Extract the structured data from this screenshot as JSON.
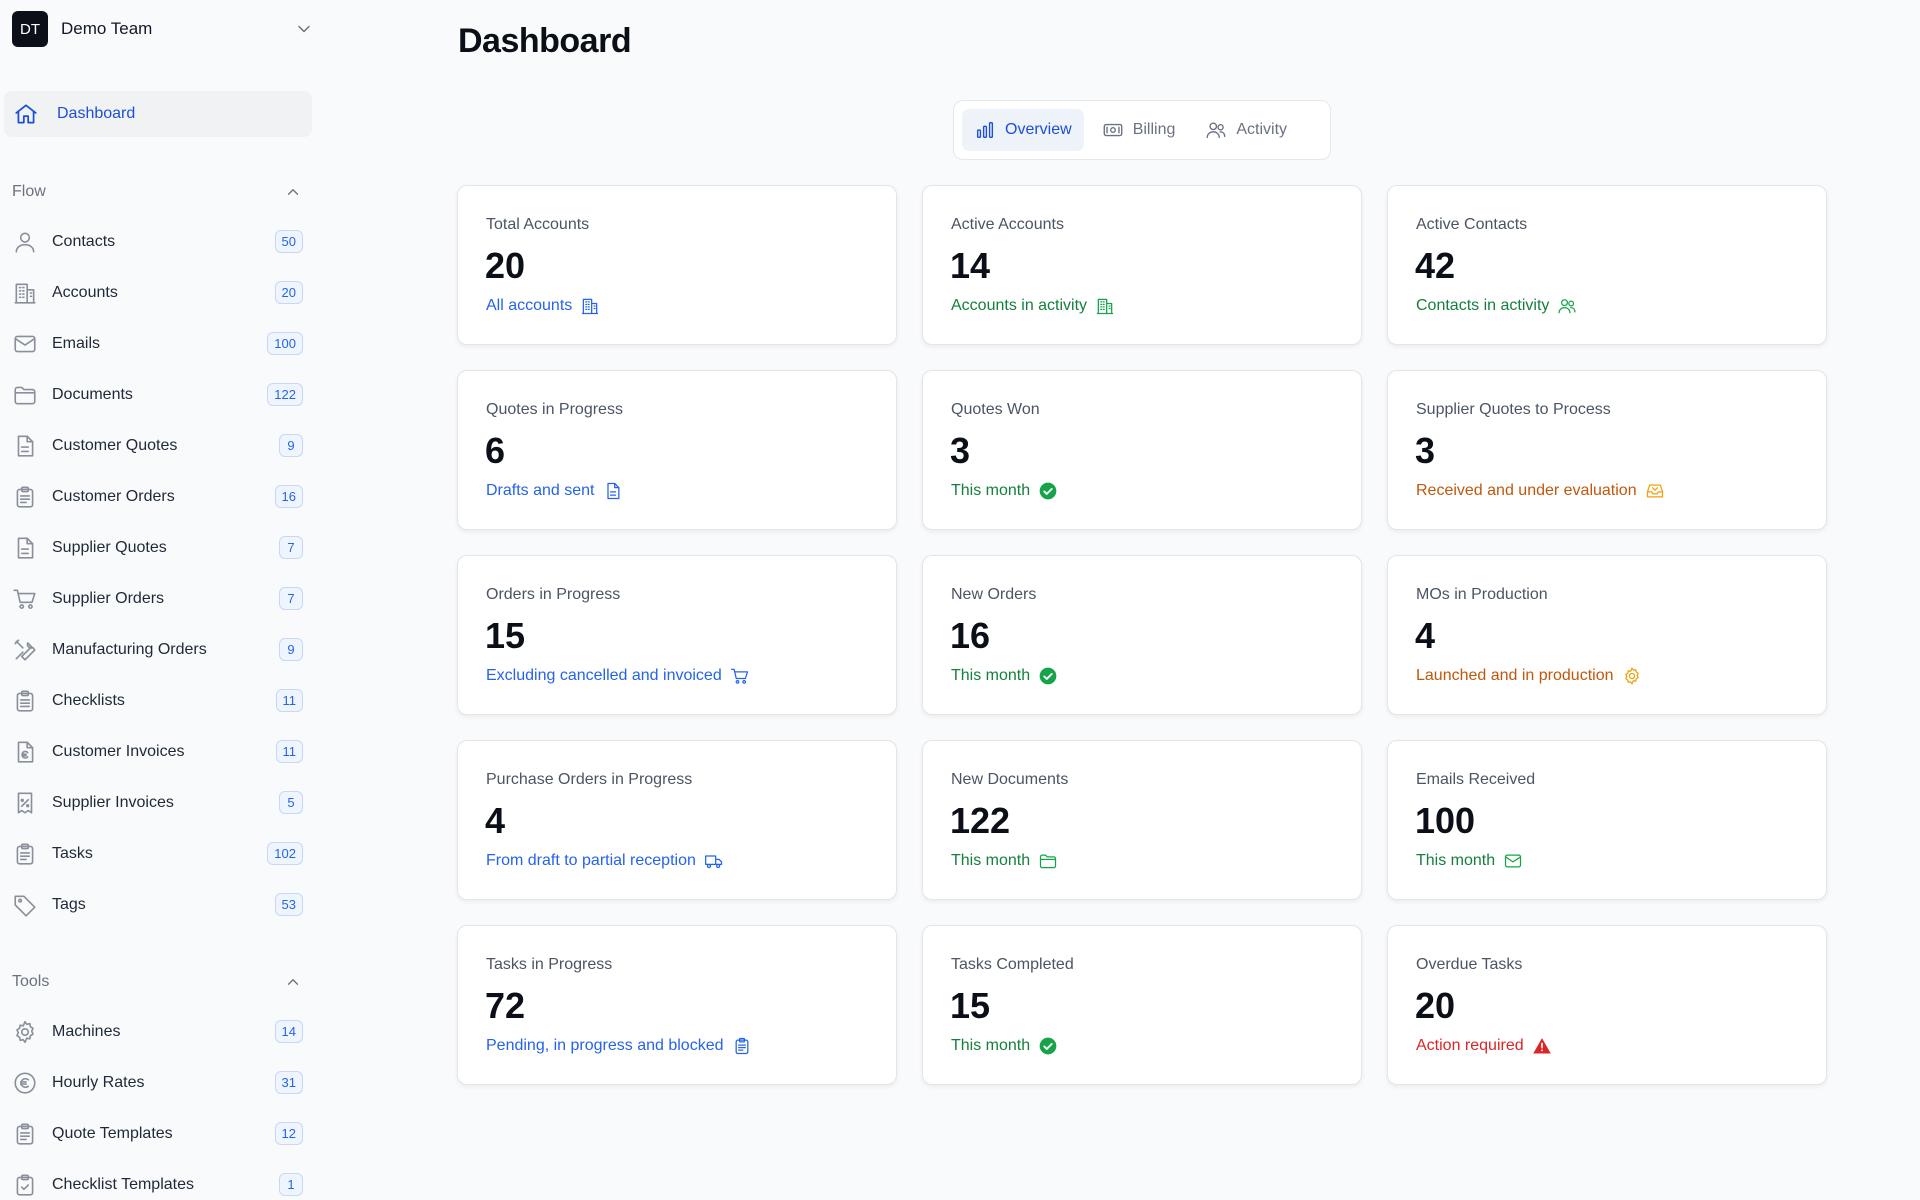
{
  "team": {
    "initials": "DT",
    "name": "Demo Team"
  },
  "nav": {
    "dashboard_label": "Dashboard"
  },
  "sections": {
    "flow": "Flow",
    "tools": "Tools"
  },
  "flow_items": [
    {
      "label": "Contacts",
      "count": "50",
      "icon": "user-icon"
    },
    {
      "label": "Accounts",
      "count": "20",
      "icon": "building-icon"
    },
    {
      "label": "Emails",
      "count": "100",
      "icon": "mail-icon"
    },
    {
      "label": "Documents",
      "count": "122",
      "icon": "folder-icon"
    },
    {
      "label": "Customer Quotes",
      "count": "9",
      "icon": "document-icon"
    },
    {
      "label": "Customer Orders",
      "count": "16",
      "icon": "clipboard-icon"
    },
    {
      "label": "Supplier Quotes",
      "count": "7",
      "icon": "document-icon"
    },
    {
      "label": "Supplier Orders",
      "count": "7",
      "icon": "cart-icon"
    },
    {
      "label": "Manufacturing Orders",
      "count": "9",
      "icon": "wrench-screwdriver-icon"
    },
    {
      "label": "Checklists",
      "count": "11",
      "icon": "clipboard-list-icon"
    },
    {
      "label": "Customer Invoices",
      "count": "11",
      "icon": "euro-document-icon"
    },
    {
      "label": "Supplier Invoices",
      "count": "5",
      "icon": "receipt-percent-icon"
    },
    {
      "label": "Tasks",
      "count": "102",
      "icon": "clipboard-icon"
    },
    {
      "label": "Tags",
      "count": "53",
      "icon": "tag-icon"
    }
  ],
  "tools_items": [
    {
      "label": "Machines",
      "count": "14",
      "icon": "gear-icon"
    },
    {
      "label": "Hourly Rates",
      "count": "31",
      "icon": "euro-circle-icon"
    },
    {
      "label": "Quote Templates",
      "count": "12",
      "icon": "clipboard-icon"
    },
    {
      "label": "Checklist Templates",
      "count": "1",
      "icon": "clipboard-check-icon"
    }
  ],
  "page": {
    "title": "Dashboard"
  },
  "tabs": [
    {
      "label": "Overview",
      "icon": "bar-chart-icon",
      "active": true
    },
    {
      "label": "Billing",
      "icon": "banknote-icon",
      "active": false
    },
    {
      "label": "Activity",
      "icon": "users-icon",
      "active": false
    }
  ],
  "cards": [
    {
      "label": "Total Accounts",
      "value": "20",
      "sub": "All accounts",
      "tone": "blue",
      "icon": "building-icon"
    },
    {
      "label": "Active Accounts",
      "value": "14",
      "sub": "Accounts in activity",
      "tone": "green",
      "icon": "building-icon"
    },
    {
      "label": "Active Contacts",
      "value": "42",
      "sub": "Contacts in activity",
      "tone": "green",
      "icon": "users-icon"
    },
    {
      "label": "Quotes in Progress",
      "value": "6",
      "sub": "Drafts and sent",
      "tone": "blue",
      "icon": "document-icon"
    },
    {
      "label": "Quotes Won",
      "value": "3",
      "sub": "This month",
      "tone": "green",
      "icon": "check-circle-icon"
    },
    {
      "label": "Supplier Quotes to Process",
      "value": "3",
      "sub": "Received and under evaluation",
      "tone": "orange",
      "icon": "inbox-icon"
    },
    {
      "label": "Orders in Progress",
      "value": "15",
      "sub": "Excluding cancelled and invoiced",
      "tone": "blue",
      "icon": "cart-icon"
    },
    {
      "label": "New Orders",
      "value": "16",
      "sub": "This month",
      "tone": "green",
      "icon": "check-circle-icon"
    },
    {
      "label": "MOs in Production",
      "value": "4",
      "sub": "Launched and in production",
      "tone": "orange",
      "icon": "gear-icon"
    },
    {
      "label": "Purchase Orders in Progress",
      "value": "4",
      "sub": "From draft to partial reception",
      "tone": "blue",
      "icon": "truck-icon"
    },
    {
      "label": "New Documents",
      "value": "122",
      "sub": "This month",
      "tone": "green",
      "icon": "folder-icon"
    },
    {
      "label": "Emails Received",
      "value": "100",
      "sub": "This month",
      "tone": "green",
      "icon": "mail-icon"
    },
    {
      "label": "Tasks in Progress",
      "value": "72",
      "sub": "Pending, in progress and blocked",
      "tone": "blue",
      "icon": "clipboard-icon"
    },
    {
      "label": "Tasks Completed",
      "value": "15",
      "sub": "This month",
      "tone": "green",
      "icon": "check-circle-icon"
    },
    {
      "label": "Overdue Tasks",
      "value": "20",
      "sub": "Action required",
      "tone": "red",
      "icon": "warning-icon"
    }
  ],
  "colors": {
    "accent": "#2563eb",
    "success": "#15803d",
    "warning": "#c2570c",
    "danger": "#dc2626"
  }
}
